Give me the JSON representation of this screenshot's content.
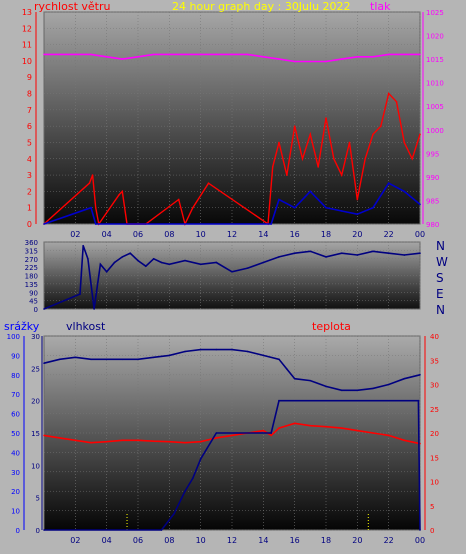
{
  "charts_meta": {
    "top_title": "24 hour graph day : 30Julu 2022",
    "top_left_label": "rychlost větru",
    "top_right_label": "tlak",
    "bottom_left_label_1": "srážky",
    "bottom_left_label_2": "vlhkost",
    "bottom_right_label": "teplota",
    "compass": [
      "N",
      "W",
      "S",
      "E",
      "N"
    ]
  },
  "colors": {
    "background": "#b5b5b5",
    "title": "#ffff00",
    "wind_axis": "#ff0000",
    "pressure_axis": "#ff00ff",
    "humidity_axis": "#000080",
    "rain_axis": "#0000ff",
    "temperature_axis": "#ff0000"
  },
  "chart_data": [
    {
      "type": "line",
      "name": "wind-pressure",
      "x_ticks": [
        "02",
        "04",
        "06",
        "08",
        "10",
        "12",
        "14",
        "16",
        "18",
        "20",
        "22",
        "00"
      ],
      "y_left": {
        "label": "rychlost větru",
        "ticks": [
          0,
          1,
          2,
          3,
          4,
          5,
          6,
          7,
          8,
          9,
          10,
          11,
          12,
          13
        ],
        "range": [
          0,
          13
        ]
      },
      "y_right": {
        "label": "tlak",
        "ticks": [
          980,
          985,
          990,
          995,
          1000,
          1005,
          1010,
          1015,
          1020,
          1025
        ],
        "range": [
          980,
          1025
        ]
      },
      "series": [
        {
          "name": "tlak",
          "color": "#ff00ff",
          "axis": "right",
          "x": [
            0,
            1,
            2,
            3,
            4,
            5,
            6,
            7,
            8,
            9,
            10,
            11,
            12,
            13,
            14,
            15,
            16,
            17,
            18,
            19,
            20,
            21,
            22,
            23,
            24
          ],
          "values": [
            1016,
            1016,
            1016,
            1016,
            1015.5,
            1015,
            1015.5,
            1016,
            1016,
            1016,
            1016,
            1016,
            1016,
            1016,
            1015.5,
            1015,
            1014.5,
            1014.5,
            1014.5,
            1015,
            1015.5,
            1015.5,
            1016,
            1016,
            1016
          ]
        },
        {
          "name": "wind-gust",
          "color": "#ff0000",
          "axis": "left",
          "x": [
            0,
            2.9,
            3.1,
            3.3,
            3.5,
            4.8,
            5.0,
            5.3,
            6.5,
            8.6,
            9.0,
            9.5,
            10.5,
            14.3,
            14.6,
            15.0,
            15.5,
            16.0,
            16.5,
            17.0,
            17.5,
            18.0,
            18.5,
            19.0,
            19.5,
            20.0,
            20.5,
            21.0,
            21.5,
            22.0,
            22.5,
            23.0,
            23.5,
            24.0
          ],
          "values": [
            0,
            2.5,
            3.0,
            1.0,
            0,
            1.8,
            2.0,
            0,
            0,
            1.5,
            0,
            1.0,
            2.5,
            0,
            3.5,
            5.0,
            3.0,
            6.0,
            4.0,
            5.5,
            3.5,
            6.5,
            4.0,
            3.0,
            5.0,
            1.5,
            4.0,
            5.5,
            6.0,
            8.0,
            7.5,
            5.0,
            4.0,
            5.5
          ]
        },
        {
          "name": "wind-avg",
          "color": "#0000cc",
          "axis": "left",
          "x": [
            0,
            3,
            3.3,
            14.5,
            15,
            16,
            17,
            18,
            19,
            20,
            21,
            22,
            23,
            24
          ],
          "values": [
            0,
            1,
            0,
            0,
            1.5,
            1.0,
            2.0,
            1.0,
            0.8,
            0.6,
            1.0,
            2.5,
            2.0,
            1.2
          ]
        }
      ]
    },
    {
      "type": "line",
      "name": "wind-direction",
      "y_left": {
        "ticks": [
          0,
          45,
          90,
          135,
          180,
          225,
          270,
          315,
          360
        ],
        "range": [
          0,
          360
        ]
      },
      "series": [
        {
          "name": "smer",
          "color": "#000080",
          "x": [
            0,
            2.3,
            2.5,
            2.8,
            3.2,
            3.6,
            4.0,
            4.5,
            5.0,
            5.5,
            6.0,
            6.5,
            7.0,
            7.5,
            8.0,
            9.0,
            10.0,
            11.0,
            12.0,
            13.0,
            14.0,
            15.0,
            16.0,
            17.0,
            18.0,
            19.0,
            20.0,
            21.0,
            22.0,
            23.0,
            24.0
          ],
          "values": [
            0,
            80,
            340,
            270,
            0,
            240,
            200,
            250,
            280,
            300,
            260,
            230,
            270,
            250,
            240,
            260,
            240,
            250,
            200,
            220,
            250,
            280,
            300,
            310,
            280,
            300,
            290,
            310,
            300,
            290,
            300
          ]
        }
      ]
    },
    {
      "type": "line",
      "name": "rain-humidity-temperature",
      "x_ticks": [
        "02",
        "04",
        "06",
        "08",
        "10",
        "12",
        "14",
        "16",
        "18",
        "20",
        "22",
        "00"
      ],
      "y_left_rain": {
        "label": "srážky",
        "ticks": [
          0,
          10,
          20,
          30,
          40,
          50,
          60,
          70,
          80,
          90,
          100
        ],
        "range": [
          0,
          100
        ]
      },
      "y_left_humidity": {
        "label": "vlhkost",
        "ticks": [
          0,
          5,
          10,
          15,
          20,
          25,
          30
        ],
        "range": [
          0,
          30
        ]
      },
      "y_right": {
        "label": "teplota",
        "ticks": [
          0,
          5,
          10,
          15,
          20,
          25,
          30,
          35,
          40
        ],
        "range": [
          0,
          40
        ]
      },
      "series": [
        {
          "name": "vlhkost",
          "color": "#000080",
          "axis": "rain",
          "x": [
            0,
            1,
            2,
            3,
            4,
            5,
            6,
            7,
            8,
            9,
            10,
            11,
            12,
            13,
            14,
            15,
            15.5,
            16,
            17,
            18,
            19,
            20,
            21,
            22,
            23,
            24
          ],
          "values": [
            86,
            88,
            89,
            88,
            88,
            88,
            88,
            89,
            90,
            92,
            93,
            93,
            93,
            92,
            90,
            88,
            83,
            78,
            77,
            74,
            72,
            72,
            73,
            75,
            78,
            80
          ]
        },
        {
          "name": "teplota",
          "color": "#ff0000",
          "axis": "right",
          "x": [
            0,
            1,
            2,
            3,
            4,
            5,
            6,
            7,
            8,
            9,
            10,
            11,
            12,
            13,
            14,
            14.5,
            15,
            16,
            17,
            18,
            19,
            20,
            21,
            22,
            23,
            24
          ],
          "values": [
            19.5,
            19,
            18.5,
            18,
            18.2,
            18.5,
            18.5,
            18.3,
            18.2,
            18,
            18.2,
            19,
            19.5,
            20,
            20.5,
            19.5,
            21,
            22,
            21.5,
            21.3,
            21,
            20.5,
            20,
            19.5,
            18.5,
            17.8
          ]
        },
        {
          "name": "srážky",
          "color": "#000080",
          "axis": "humidity",
          "x": [
            0,
            7.5,
            8.3,
            9.0,
            9.5,
            10,
            11,
            14.5,
            15,
            23.9,
            24
          ],
          "values": [
            0,
            0,
            2.5,
            6,
            8,
            11,
            15,
            15,
            20,
            20,
            0
          ]
        }
      ]
    }
  ]
}
